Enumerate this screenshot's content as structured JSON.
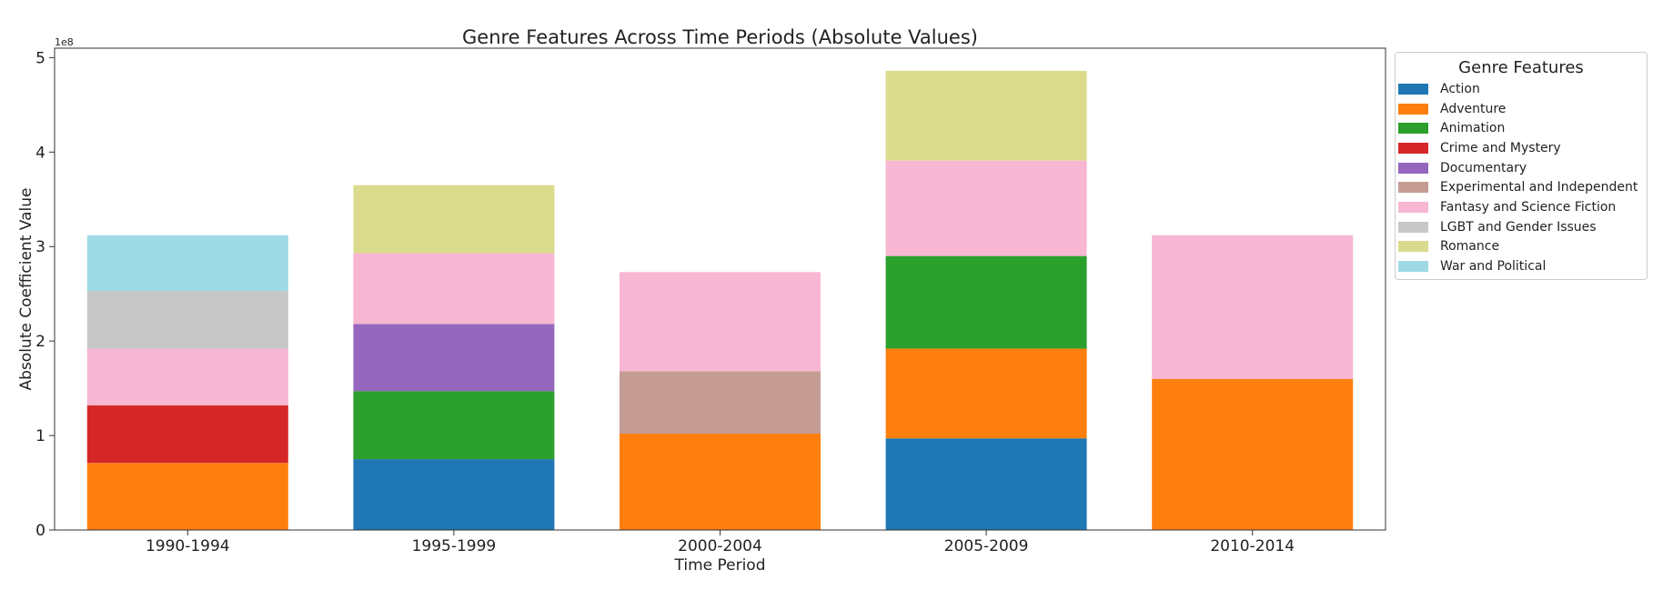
{
  "chart_data": {
    "type": "bar",
    "stacked": true,
    "title": "Genre Features Across Time Periods (Absolute Values)",
    "xlabel": "Time Period",
    "ylabel": "Absolute Coefficient Value",
    "y_offset_label": "1e8",
    "ylim": [
      0,
      510000000
    ],
    "yticks": [
      {
        "value": 0,
        "label": "0"
      },
      {
        "value": 100000000,
        "label": "1"
      },
      {
        "value": 200000000,
        "label": "2"
      },
      {
        "value": 300000000,
        "label": "3"
      },
      {
        "value": 400000000,
        "label": "4"
      },
      {
        "value": 500000000,
        "label": "5"
      }
    ],
    "categories": [
      "1990-1994",
      "1995-1999",
      "2000-2004",
      "2005-2009",
      "2010-2014"
    ],
    "legend_title": "Genre Features",
    "legend_position": "outside right, top",
    "grid": false,
    "series": [
      {
        "name": "Action",
        "color": "#1f77b4",
        "values": [
          0,
          75000000,
          0,
          97000000,
          0
        ]
      },
      {
        "name": "Adventure",
        "color": "#ff7f0e",
        "values": [
          71000000,
          0,
          102000000,
          95000000,
          160000000
        ]
      },
      {
        "name": "Animation",
        "color": "#2ca02c",
        "values": [
          0,
          72000000,
          0,
          98000000,
          0
        ]
      },
      {
        "name": "Crime and Mystery",
        "color": "#d62728",
        "values": [
          61000000,
          0,
          0,
          0,
          0
        ]
      },
      {
        "name": "Documentary",
        "color": "#9467bd",
        "values": [
          0,
          71000000,
          0,
          0,
          0
        ]
      },
      {
        "name": "Experimental and Independent",
        "color": "#c49c94",
        "values": [
          0,
          0,
          66000000,
          0,
          0
        ]
      },
      {
        "name": "Fantasy and Science Fiction",
        "color": "#f7b6d2",
        "values": [
          60000000,
          75000000,
          105000000,
          101000000,
          152000000
        ]
      },
      {
        "name": "LGBT and Gender Issues",
        "color": "#c7c7c7",
        "values": [
          61000000,
          0,
          0,
          0,
          0
        ]
      },
      {
        "name": "Romance",
        "color": "#dbdb8d",
        "values": [
          0,
          72000000,
          0,
          95000000,
          0
        ]
      },
      {
        "name": "War and Political",
        "color": "#9edae5",
        "values": [
          59000000,
          0,
          0,
          0,
          0
        ]
      }
    ]
  }
}
